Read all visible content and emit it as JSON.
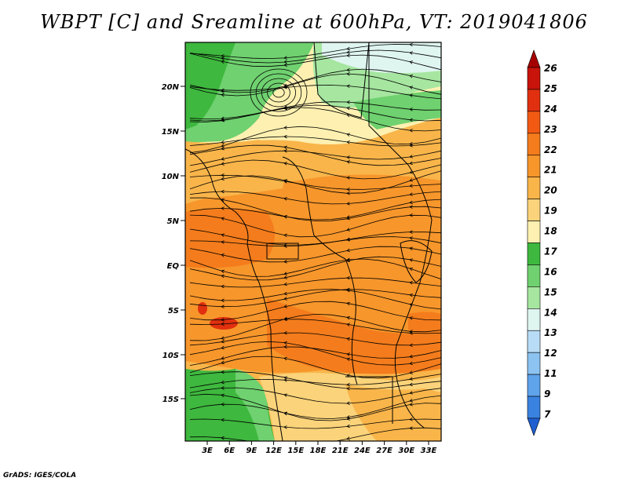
{
  "title": "WBPT [C] and Sreamline at 600hPa, VT: 2019041806",
  "credit": "GrADS: IGES/COLA",
  "lat_ticks": [
    "20N",
    "15N",
    "10N",
    "5N",
    "EQ",
    "5S",
    "10S",
    "15S"
  ],
  "lon_ticks": [
    "3E",
    "6E",
    "9E",
    "12E",
    "15E",
    "18E",
    "21E",
    "24E",
    "27E",
    "30E",
    "33E"
  ],
  "colorbar": {
    "labels": [
      "26",
      "25",
      "24",
      "23",
      "22",
      "21",
      "20",
      "19",
      "18",
      "17",
      "16",
      "15",
      "14",
      "13",
      "12",
      "11",
      "9",
      "7"
    ],
    "colors": [
      "#a50000",
      "#c8140a",
      "#e0300f",
      "#f25a14",
      "#f47c1c",
      "#f7962b",
      "#f9b54a",
      "#fbd37a",
      "#fdf0b0",
      "#3eb83e",
      "#6fd16f",
      "#a6e6a0",
      "#dff5f0",
      "#b8dcf5",
      "#8cc3f0",
      "#5fa3ea",
      "#3a82e0",
      "#1f5fd0"
    ]
  },
  "map_colors": {
    "orange": "#f7962b",
    "dark_orange": "#f47c1c",
    "light_orange": "#f9b54a",
    "yellow": "#fbd37a",
    "pale": "#fdf0b0",
    "green": "#6fd16f",
    "dark_green": "#3eb83e",
    "light_green": "#a6e6a0",
    "cyan": "#dff5f0",
    "red": "#e0300f"
  }
}
